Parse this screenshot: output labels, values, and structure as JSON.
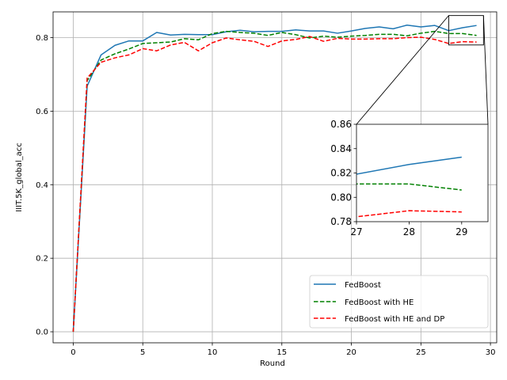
{
  "chart_data": {
    "type": "line",
    "xlabel": "Round",
    "ylabel": "IIIT.5K_global_acc",
    "xlim": [
      -1.45,
      30.45
    ],
    "ylim": [
      -0.03,
      0.87
    ],
    "xticks": [
      0,
      5,
      10,
      15,
      20,
      25,
      30
    ],
    "yticks": [
      0.0,
      0.2,
      0.4,
      0.6,
      0.8
    ],
    "grid": true,
    "legend_position": "lower-right",
    "x": [
      0,
      1,
      2,
      3,
      4,
      5,
      6,
      7,
      8,
      9,
      10,
      11,
      12,
      13,
      14,
      15,
      16,
      17,
      18,
      19,
      20,
      21,
      22,
      23,
      24,
      25,
      26,
      27,
      28,
      29
    ],
    "series": [
      {
        "name": "FedBoost",
        "color": "#1f77b4",
        "linestyle": "solid",
        "values": [
          0.0,
          0.668,
          0.753,
          0.779,
          0.791,
          0.791,
          0.814,
          0.807,
          0.809,
          0.808,
          0.808,
          0.816,
          0.82,
          0.816,
          0.817,
          0.817,
          0.821,
          0.818,
          0.818,
          0.812,
          0.818,
          0.825,
          0.829,
          0.824,
          0.834,
          0.829,
          0.833,
          0.819,
          0.827,
          0.833
        ]
      },
      {
        "name": "FedBoost with HE",
        "color": "#008000",
        "linestyle": "dashed",
        "values": [
          0.0,
          0.683,
          0.739,
          0.756,
          0.769,
          0.784,
          0.786,
          0.788,
          0.797,
          0.794,
          0.811,
          0.817,
          0.814,
          0.812,
          0.806,
          0.814,
          0.808,
          0.799,
          0.804,
          0.801,
          0.804,
          0.806,
          0.809,
          0.809,
          0.805,
          0.812,
          0.817,
          0.811,
          0.811,
          0.806
        ]
      },
      {
        "name": "FedBoost with HE and DP",
        "color": "#ff0000",
        "linestyle": "dashed",
        "values": [
          0.0,
          0.69,
          0.733,
          0.745,
          0.753,
          0.77,
          0.764,
          0.78,
          0.787,
          0.764,
          0.786,
          0.799,
          0.794,
          0.79,
          0.776,
          0.791,
          0.795,
          0.803,
          0.79,
          0.798,
          0.796,
          0.796,
          0.797,
          0.797,
          0.8,
          0.801,
          0.795,
          0.784,
          0.789,
          0.788
        ]
      }
    ],
    "inset": {
      "xlim": [
        27,
        29.5
      ],
      "ylim": [
        0.78,
        0.86
      ],
      "xticks": [
        27,
        28,
        29
      ],
      "yticks": [
        0.78,
        0.8,
        0.82,
        0.84,
        0.86
      ],
      "grid": false
    }
  }
}
